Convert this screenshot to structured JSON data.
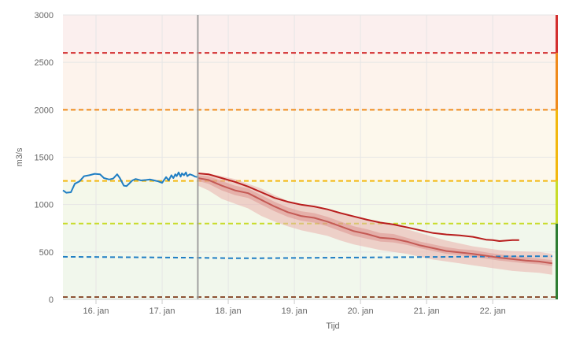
{
  "chart_data": {
    "type": "line",
    "xlabel": "Tijd",
    "ylabel": "m3/s",
    "ylim": [
      0,
      3000
    ],
    "xlim": [
      0,
      7.45
    ],
    "x_ticks": [
      {
        "x": 0.5,
        "label": "16. jan"
      },
      {
        "x": 1.5,
        "label": "17. jan"
      },
      {
        "x": 2.5,
        "label": "18. jan"
      },
      {
        "x": 3.5,
        "label": "19. jan"
      },
      {
        "x": 4.5,
        "label": "20. jan"
      },
      {
        "x": 5.5,
        "label": "21. jan"
      },
      {
        "x": 6.5,
        "label": "22. jan"
      }
    ],
    "y_ticks": [
      0,
      500,
      1000,
      1500,
      2000,
      2500,
      3000
    ],
    "grid": true,
    "now_x": 2.04,
    "bands": [
      {
        "from": 0,
        "to": 800,
        "color": "#f1f7ec"
      },
      {
        "from": 800,
        "to": 1250,
        "color": "#f4f8ea"
      },
      {
        "from": 1250,
        "to": 2000,
        "color": "#fdf8ec"
      },
      {
        "from": 2000,
        "to": 2600,
        "color": "#fdf3ec"
      },
      {
        "from": 2600,
        "to": 3000,
        "color": "#fbefee"
      }
    ],
    "thresholds": [
      {
        "value": 2600,
        "color": "#d32f2f"
      },
      {
        "value": 2000,
        "color": "#ef8a1c"
      },
      {
        "value": 1250,
        "color": "#f2b80f"
      },
      {
        "value": 800,
        "color": "#c8dc2a"
      },
      {
        "value": 25,
        "color": "#8d5234"
      }
    ],
    "side_bar": [
      {
        "from": 0,
        "to": 800,
        "color": "#2e7d32"
      },
      {
        "from": 800,
        "to": 1250,
        "color": "#c8dc2a"
      },
      {
        "from": 1250,
        "to": 2000,
        "color": "#f2b80f"
      },
      {
        "from": 2000,
        "to": 2600,
        "color": "#ef8a1c"
      },
      {
        "from": 2600,
        "to": 3000,
        "color": "#d32f2f"
      }
    ],
    "series": [
      {
        "kind": "observed",
        "color": "#1f7ec4",
        "x": [
          0.0,
          0.05,
          0.12,
          0.18,
          0.25,
          0.32,
          0.4,
          0.48,
          0.56,
          0.62,
          0.7,
          0.76,
          0.82,
          0.86,
          0.92,
          0.96,
          1.0,
          1.05,
          1.1,
          1.18,
          1.26,
          1.32,
          1.38,
          1.44,
          1.5,
          1.56,
          1.6,
          1.64,
          1.67,
          1.7,
          1.72,
          1.75,
          1.78,
          1.8,
          1.83,
          1.86,
          1.88,
          1.92,
          1.96,
          2.0,
          2.04
        ],
        "y": [
          1150,
          1125,
          1130,
          1220,
          1245,
          1300,
          1310,
          1325,
          1320,
          1280,
          1265,
          1275,
          1320,
          1280,
          1200,
          1195,
          1220,
          1255,
          1270,
          1255,
          1260,
          1265,
          1255,
          1245,
          1230,
          1290,
          1255,
          1310,
          1280,
          1320,
          1300,
          1340,
          1295,
          1330,
          1310,
          1340,
          1300,
          1320,
          1310,
          1295,
          1290
        ]
      },
      {
        "kind": "forecast-high",
        "color": "#b81d1d",
        "x": [
          2.04,
          2.2,
          2.4,
          2.6,
          2.8,
          3.0,
          3.2,
          3.4,
          3.6,
          3.8,
          4.0,
          4.2,
          4.4,
          4.6,
          4.8,
          5.0,
          5.2,
          5.4,
          5.6,
          5.8,
          6.0,
          6.2,
          6.4,
          6.5,
          6.6,
          6.7,
          6.8,
          6.9
        ],
        "y": [
          1330,
          1320,
          1280,
          1240,
          1190,
          1130,
          1070,
          1030,
          1000,
          980,
          950,
          910,
          875,
          840,
          810,
          790,
          760,
          730,
          700,
          685,
          675,
          660,
          630,
          625,
          615,
          620,
          625,
          625
        ]
      },
      {
        "kind": "forecast-median",
        "color": "#c45a55",
        "x": [
          2.04,
          2.2,
          2.4,
          2.6,
          2.8,
          3.0,
          3.2,
          3.4,
          3.6,
          3.8,
          4.0,
          4.2,
          4.4,
          4.6,
          4.8,
          5.0,
          5.2,
          5.4,
          5.6,
          5.8,
          6.0,
          6.2,
          6.4,
          6.6,
          6.8,
          7.0,
          7.2,
          7.4
        ],
        "y": [
          1280,
          1260,
          1200,
          1150,
          1120,
          1050,
          980,
          920,
          880,
          860,
          820,
          770,
          720,
          690,
          650,
          640,
          610,
          570,
          540,
          510,
          495,
          480,
          460,
          440,
          425,
          410,
          400,
          380
        ]
      }
    ],
    "bands_forecast": [
      {
        "kind": "inner",
        "color": "#d98783",
        "opacity": 0.45,
        "x": [
          2.04,
          2.2,
          2.4,
          2.6,
          2.8,
          3.0,
          3.2,
          3.4,
          3.6,
          3.8,
          4.0,
          4.2,
          4.4,
          4.6,
          4.8,
          5.0,
          5.2,
          5.4,
          5.6,
          5.8,
          6.0,
          6.2,
          6.4,
          6.6,
          6.8,
          7.0,
          7.2,
          7.4
        ],
        "low": [
          1250,
          1220,
          1150,
          1100,
          1070,
          1000,
          930,
          870,
          830,
          810,
          770,
          720,
          670,
          640,
          610,
          600,
          575,
          540,
          510,
          480,
          465,
          450,
          430,
          410,
          395,
          380,
          370,
          350
        ],
        "high": [
          1310,
          1300,
          1250,
          1200,
          1170,
          1100,
          1030,
          970,
          930,
          910,
          870,
          820,
          770,
          740,
          700,
          690,
          650,
          610,
          580,
          550,
          530,
          520,
          495,
          475,
          460,
          445,
          430,
          415
        ]
      },
      {
        "kind": "outer",
        "color": "#e9b0ab",
        "opacity": 0.55,
        "x": [
          2.04,
          2.2,
          2.4,
          2.6,
          2.8,
          3.0,
          3.2,
          3.4,
          3.6,
          3.8,
          4.0,
          4.2,
          4.4,
          4.6,
          4.8,
          5.0,
          5.2,
          5.4,
          5.6,
          5.8,
          6.0,
          6.2,
          6.4,
          6.6,
          6.8,
          7.0,
          7.2,
          7.4
        ],
        "low": [
          1200,
          1150,
          1060,
          1010,
          960,
          880,
          820,
          770,
          730,
          700,
          670,
          620,
          580,
          550,
          520,
          500,
          480,
          450,
          420,
          400,
          380,
          360,
          340,
          320,
          300,
          290,
          280,
          260
        ],
        "high": [
          1330,
          1330,
          1300,
          1270,
          1220,
          1170,
          1100,
          1040,
          1000,
          980,
          950,
          900,
          870,
          840,
          810,
          790,
          740,
          700,
          660,
          620,
          590,
          560,
          540,
          520,
          510,
          505,
          500,
          480
        ]
      }
    ],
    "reference_line": {
      "color": "#1f7ec4",
      "x": [
        0.0,
        1.0,
        2.0,
        2.5,
        3.0,
        4.0,
        5.0,
        6.0,
        7.0,
        7.4
      ],
      "y": [
        450,
        445,
        440,
        435,
        435,
        440,
        445,
        450,
        455,
        455
      ]
    }
  }
}
